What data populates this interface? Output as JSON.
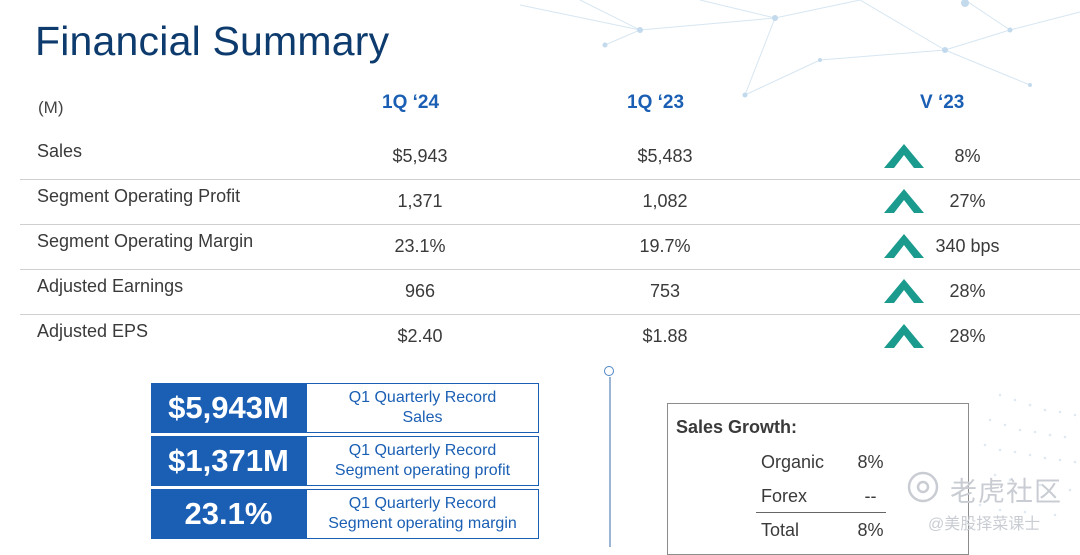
{
  "title": "Financial Summary",
  "table": {
    "unit_label": "(M)",
    "columns": [
      "1Q ‘24",
      "1Q ‘23",
      "V ‘23"
    ],
    "rows": [
      {
        "label": "Sales",
        "cur": "$5,943",
        "prev": "$5,483",
        "change": "8%",
        "direction": "up"
      },
      {
        "label": "Segment Operating Profit",
        "cur": "1,371",
        "prev": "1,082",
        "change": "27%",
        "direction": "up"
      },
      {
        "label": "Segment Operating Margin",
        "cur": "23.1%",
        "prev": "19.7%",
        "change": "340 bps",
        "direction": "up"
      },
      {
        "label": "Adjusted Earnings",
        "cur": "966",
        "prev": "753",
        "change": "28%",
        "direction": "up"
      },
      {
        "label": "Adjusted EPS",
        "cur": "$2.40",
        "prev": "$1.88",
        "change": "28%",
        "direction": "up"
      }
    ]
  },
  "kpis": [
    {
      "value": "$5,943M",
      "line1": "Q1 Quarterly Record",
      "line2": "Sales"
    },
    {
      "value": "$1,371M",
      "line1": "Q1 Quarterly Record",
      "line2": "Segment operating profit"
    },
    {
      "value": "23.1%",
      "line1": "Q1 Quarterly Record",
      "line2": "Segment operating margin"
    }
  ],
  "sales_growth": {
    "title": "Sales Growth:",
    "items": [
      {
        "label": "Organic",
        "value": "8%"
      },
      {
        "label": "Forex",
        "value": "--"
      },
      {
        "label": "Total",
        "value": "8%"
      }
    ]
  },
  "watermark": {
    "line1": "老虎社区",
    "line2": "@美股择菜课士"
  },
  "colors": {
    "title": "#0d3b6e",
    "accent_blue": "#1a5fb4",
    "arrow_teal": "#1a9b8e"
  }
}
